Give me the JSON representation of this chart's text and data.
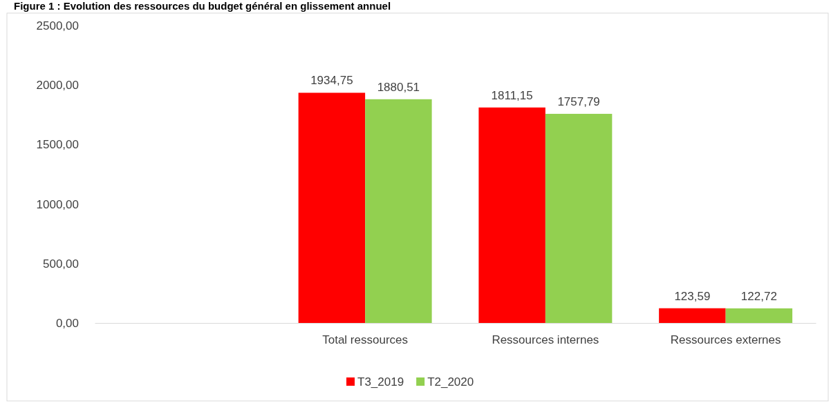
{
  "chart_data": {
    "type": "bar",
    "title": "Figure 1 : Evolution des ressources du budget général en glissement annuel",
    "categories": [
      null,
      "Total ressources",
      "Ressources internes",
      "Ressources externes"
    ],
    "series": [
      {
        "name": "T3_2019",
        "color": "#ff0000",
        "values": [
          null,
          1934.75,
          1811.15,
          123.59
        ],
        "value_labels": [
          null,
          "1934,75",
          "1811,15",
          "123,59"
        ]
      },
      {
        "name": "T2_2020",
        "color": "#92d050",
        "values": [
          null,
          1880.51,
          1757.79,
          122.72
        ],
        "value_labels": [
          null,
          "1880,51",
          "1757,79",
          "122,72"
        ]
      }
    ],
    "ylim": [
      0,
      2500
    ],
    "yticks": [
      {
        "value": 0,
        "label": "0,00"
      },
      {
        "value": 500,
        "label": "500,00"
      },
      {
        "value": 1000,
        "label": "1000,00"
      },
      {
        "value": 1500,
        "label": "1500,00"
      },
      {
        "value": 2000,
        "label": "2000,00"
      },
      {
        "value": 2500,
        "label": "2500,00"
      }
    ],
    "grid": false,
    "legend": "bottom"
  }
}
